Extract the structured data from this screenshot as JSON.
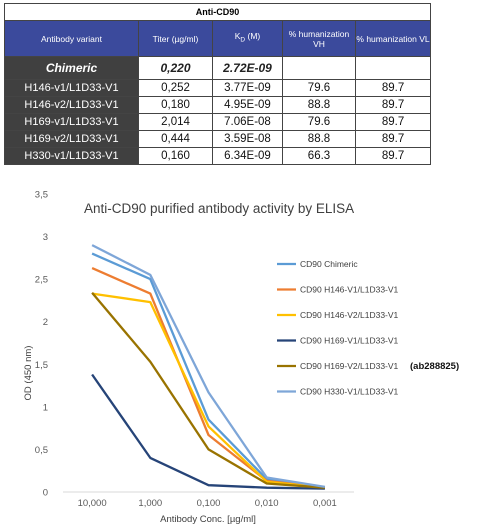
{
  "table": {
    "title": "Anti-CD90",
    "headers": {
      "variant": "Antibody variant",
      "titer": "Titer (µg/ml)",
      "kd_main": "K",
      "kd_sub": "D",
      "kd_unit": " (M)",
      "hum_vh": "% humanization VH",
      "hum_vl": "% humanization VL"
    },
    "rows": [
      {
        "variant": "Chimeric",
        "titer": "0,220",
        "kd": "2.72E-09",
        "hum_vh": "",
        "hum_vl": ""
      },
      {
        "variant": "H146-v1/L1D33-V1",
        "titer": "0,252",
        "kd": "3.77E-09",
        "hum_vh": "79.6",
        "hum_vl": "89.7"
      },
      {
        "variant": "H146-v2/L1D33-V1",
        "titer": "0,180",
        "kd": "4.95E-09",
        "hum_vh": "88.8",
        "hum_vl": "89.7"
      },
      {
        "variant": "H169-v1/L1D33-V1",
        "titer": "2,014",
        "kd": "7.06E-08",
        "hum_vh": "79.6",
        "hum_vl": "89.7"
      },
      {
        "variant": "H169-v2/L1D33-V1",
        "titer": "0,444",
        "kd": "3.59E-08",
        "hum_vh": "88.8",
        "hum_vl": "89.7"
      },
      {
        "variant": "H330-v1/L1D33-V1",
        "titer": "0,160",
        "kd": "6.34E-09",
        "hum_vh": "66.3",
        "hum_vl": "89.7"
      }
    ]
  },
  "chart_data": {
    "type": "line",
    "title": "Anti-CD90 purified antibody activity by ELISA",
    "xlabel": "Antibody Conc. [µg/ml]",
    "ylabel": "OD (450 nm)",
    "categories": [
      "10,000",
      "1,000",
      "0,100",
      "0,010",
      "0,001"
    ],
    "ylim": [
      0,
      3.5
    ],
    "yticks": [
      "0",
      "0,5",
      "1",
      "1,5",
      "2",
      "2,5",
      "3",
      "3,5"
    ],
    "grid": false,
    "legend_position": "right",
    "annotation": "(ab288825)",
    "series": [
      {
        "name": "CD90 Chimeric",
        "color": "#5b9bd5",
        "values": [
          2.8,
          2.5,
          0.85,
          0.15,
          0.05
        ]
      },
      {
        "name": "CD90 H146-V1/L1D33-V1",
        "color": "#ed7d31",
        "values": [
          2.63,
          2.33,
          0.67,
          0.13,
          0.05
        ]
      },
      {
        "name": "CD90 H146-V2/L1D33-V1",
        "color": "#ffc000",
        "values": [
          2.33,
          2.23,
          0.77,
          0.12,
          0.05
        ]
      },
      {
        "name": "CD90 H169-V1/L1D33-V1",
        "color": "#264478",
        "values": [
          1.38,
          0.4,
          0.08,
          0.05,
          0.04
        ]
      },
      {
        "name": "CD90 H169-V2/L1D33-V1",
        "color": "#997300",
        "values": [
          2.34,
          1.53,
          0.5,
          0.1,
          0.05
        ]
      },
      {
        "name": "CD90 H330-V1/L1D33-V1",
        "color": "#7ea6d8",
        "values": [
          2.9,
          2.55,
          1.17,
          0.17,
          0.06
        ]
      }
    ]
  }
}
